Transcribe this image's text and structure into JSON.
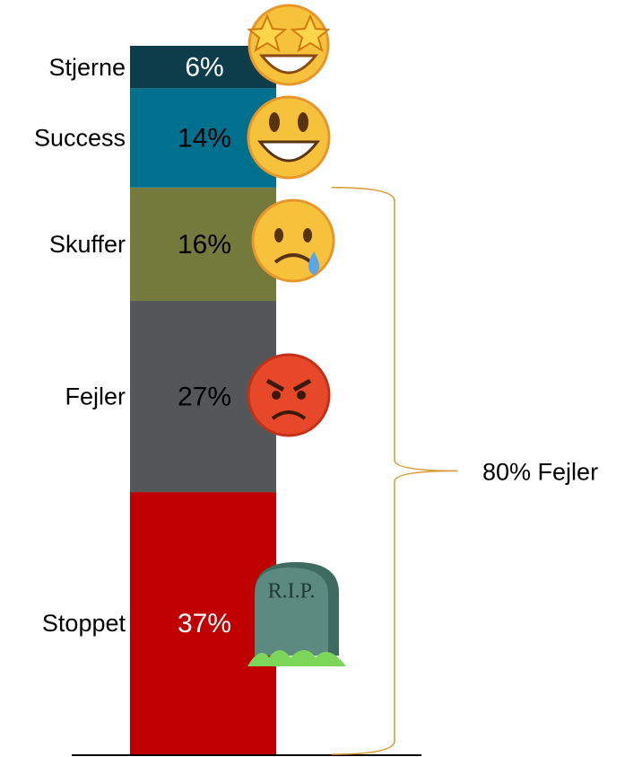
{
  "chart_data": {
    "type": "bar",
    "stacked": true,
    "categories": [
      null
    ],
    "series": [
      {
        "name": "Stoppet",
        "color": "#c00000",
        "label_color": "#ffffff",
        "values": [
          37
        ],
        "value_labels": [
          "37%"
        ]
      },
      {
        "name": "Fejler",
        "color": "#54575a",
        "label_color": "#000000",
        "values": [
          27
        ],
        "value_labels": [
          "27%"
        ]
      },
      {
        "name": "Skuffer",
        "color": "#747a3c",
        "label_color": "#000000",
        "values": [
          16
        ],
        "value_labels": [
          "16%"
        ]
      },
      {
        "name": "Success",
        "color": "#00708f",
        "label_color": "#000000",
        "values": [
          14
        ],
        "value_labels": [
          "14%"
        ]
      },
      {
        "name": "Stjerne",
        "color": "#0d3c4a",
        "label_color": "#ffffff",
        "values": [
          6
        ],
        "value_labels": [
          "6%"
        ]
      }
    ],
    "ylim": [
      0,
      100
    ],
    "annotations": [
      {
        "text": "80% Fejler",
        "range": [
          0,
          80
        ],
        "color": "#d9962e"
      }
    ],
    "tombstone_text": "R.I.P."
  }
}
